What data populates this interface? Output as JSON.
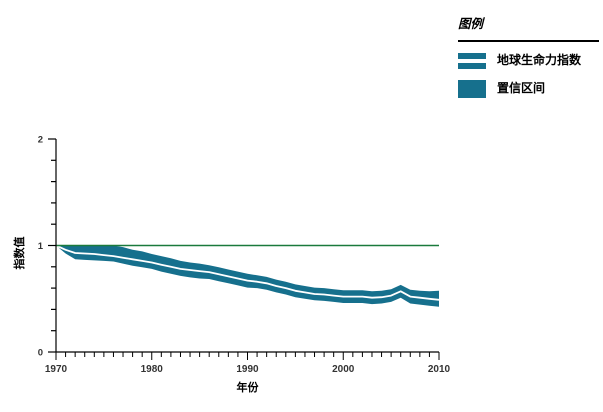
{
  "legend": {
    "title": "图例",
    "items": [
      {
        "label": "地球生命力指数",
        "swatch": "band-with-line"
      },
      {
        "label": "置信区间",
        "swatch": "solid"
      }
    ]
  },
  "colors": {
    "band": "#16708D",
    "lpi_line": "#FFFFFF",
    "reference_line": "#1A7A3C",
    "axis": "#000000",
    "tick_label": "#333333",
    "axis_label": "#000000"
  },
  "chart_data": {
    "type": "area",
    "title": "",
    "xlabel": "年份",
    "ylabel": "指数值",
    "xlim": [
      1970,
      2010
    ],
    "ylim": [
      0,
      2
    ],
    "x_tick_labels": [
      1970,
      1980,
      1990,
      2000,
      2010
    ],
    "x_minor_tick_interval": 1,
    "y_tick_labels": [
      0,
      1,
      2
    ],
    "y_minor_tick_interval": 0.2,
    "reference_line_y": 1,
    "grid": false,
    "legend_position": "top-right-outside",
    "x": [
      1970,
      1971,
      1972,
      1973,
      1974,
      1975,
      1976,
      1977,
      1978,
      1979,
      1980,
      1981,
      1982,
      1983,
      1984,
      1985,
      1986,
      1987,
      1988,
      1989,
      1990,
      1991,
      1992,
      1993,
      1994,
      1995,
      1996,
      1997,
      1998,
      1999,
      2000,
      2001,
      2002,
      2003,
      2004,
      2005,
      2006,
      2007,
      2008,
      2009,
      2010
    ],
    "series": [
      {
        "name": "地球生命力指数",
        "role": "center",
        "values": [
          1.0,
          0.96,
          0.93,
          0.925,
          0.92,
          0.91,
          0.9,
          0.885,
          0.87,
          0.855,
          0.84,
          0.82,
          0.8,
          0.78,
          0.77,
          0.76,
          0.75,
          0.73,
          0.71,
          0.69,
          0.67,
          0.66,
          0.645,
          0.62,
          0.6,
          0.575,
          0.56,
          0.545,
          0.54,
          0.53,
          0.52,
          0.52,
          0.52,
          0.51,
          0.515,
          0.53,
          0.57,
          0.52,
          0.51,
          0.5,
          0.49
        ]
      },
      {
        "name": "置信区间上限",
        "role": "upper",
        "values": [
          1.0,
          1.0,
          1.0,
          1.0,
          1.0,
          1.0,
          1.0,
          0.985,
          0.96,
          0.945,
          0.92,
          0.9,
          0.88,
          0.855,
          0.84,
          0.83,
          0.815,
          0.795,
          0.775,
          0.755,
          0.735,
          0.72,
          0.705,
          0.68,
          0.66,
          0.635,
          0.62,
          0.605,
          0.6,
          0.59,
          0.58,
          0.58,
          0.58,
          0.57,
          0.575,
          0.59,
          0.63,
          0.585,
          0.575,
          0.57,
          0.575
        ]
      },
      {
        "name": "置信区间下限",
        "role": "lower",
        "values": [
          1.0,
          0.925,
          0.87,
          0.865,
          0.86,
          0.855,
          0.85,
          0.83,
          0.81,
          0.795,
          0.78,
          0.755,
          0.735,
          0.715,
          0.7,
          0.69,
          0.685,
          0.665,
          0.645,
          0.625,
          0.605,
          0.6,
          0.585,
          0.56,
          0.54,
          0.515,
          0.5,
          0.485,
          0.48,
          0.47,
          0.46,
          0.46,
          0.46,
          0.45,
          0.455,
          0.47,
          0.51,
          0.455,
          0.445,
          0.435,
          0.425
        ]
      }
    ]
  }
}
